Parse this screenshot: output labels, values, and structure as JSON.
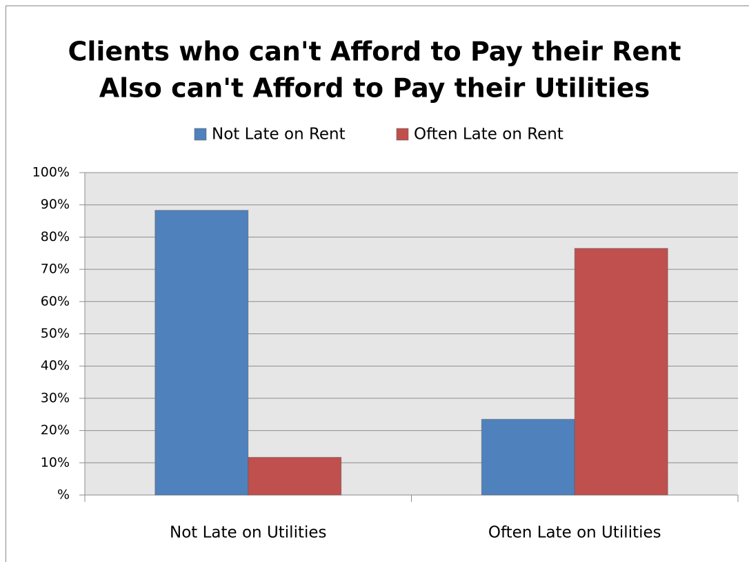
{
  "chart_data": {
    "type": "bar",
    "title": [
      "Clients who can't Afford to Pay their Rent",
      "Also can't Afford to Pay their Utilities"
    ],
    "categories": [
      "Not Late on Utilities",
      "Often Late on Utilities"
    ],
    "series": [
      {
        "name": "Not Late on Rent",
        "color": "#4f81bd",
        "values": [
          88.3,
          23.5
        ]
      },
      {
        "name": "Often Late on Rent",
        "color": "#c0504d",
        "values": [
          11.7,
          76.5
        ]
      }
    ],
    "ylim": [
      0,
      100
    ],
    "yticks": [
      {
        "value": 0,
        "label": "%"
      },
      {
        "value": 10,
        "label": "10%"
      },
      {
        "value": 20,
        "label": "20%"
      },
      {
        "value": 30,
        "label": "30%"
      },
      {
        "value": 40,
        "label": "40%"
      },
      {
        "value": 50,
        "label": "50%"
      },
      {
        "value": 60,
        "label": "60%"
      },
      {
        "value": 70,
        "label": "70%"
      },
      {
        "value": 80,
        "label": "80%"
      },
      {
        "value": 90,
        "label": "90%"
      },
      {
        "value": 100,
        "label": "100%"
      }
    ],
    "grid": true,
    "legend": "top"
  }
}
